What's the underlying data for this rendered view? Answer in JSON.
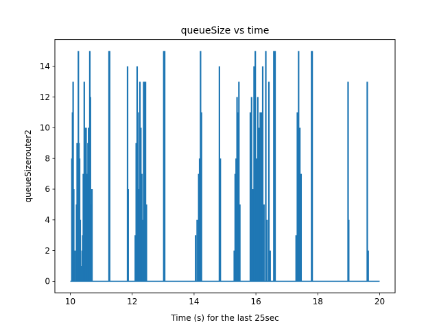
{
  "chart_data": {
    "type": "line",
    "title": "queueSize vs time",
    "xlabel": "Time (s) for the last 25sec",
    "ylabel": "queueSizerouter2",
    "xlim": [
      9.5,
      20.5
    ],
    "ylim": [
      -0.75,
      15.75
    ],
    "xticks": [
      10,
      12,
      14,
      16,
      18,
      20
    ],
    "yticks": [
      0,
      2,
      4,
      6,
      8,
      10,
      12,
      14
    ],
    "grid": false,
    "legend": "none",
    "line_color": "#1f77b4",
    "baseline": {
      "x_start": 10.0,
      "x_end": 20.0,
      "y": 0
    },
    "series": [
      {
        "spikes": [
          [
            10.05,
            8
          ],
          [
            10.07,
            11
          ],
          [
            10.09,
            13
          ],
          [
            10.11,
            6
          ],
          [
            10.13,
            2
          ],
          [
            10.16,
            0
          ],
          [
            10.18,
            2
          ],
          [
            10.2,
            5
          ],
          [
            10.22,
            9
          ],
          [
            10.24,
            7
          ],
          [
            10.26,
            15
          ],
          [
            10.28,
            9
          ],
          [
            10.3,
            8
          ],
          [
            10.32,
            4
          ],
          [
            10.35,
            1
          ],
          [
            10.38,
            2
          ],
          [
            10.4,
            3
          ],
          [
            10.42,
            7
          ],
          [
            10.45,
            13
          ],
          [
            10.47,
            10
          ],
          [
            10.49,
            9
          ],
          [
            10.51,
            10
          ],
          [
            10.53,
            5
          ],
          [
            10.55,
            7
          ],
          [
            10.57,
            9
          ],
          [
            10.59,
            10
          ],
          [
            10.61,
            2
          ],
          [
            10.63,
            15
          ],
          [
            10.65,
            12
          ],
          [
            10.67,
            5
          ],
          [
            10.7,
            6
          ],
          [
            11.25,
            15
          ],
          [
            11.27,
            15
          ],
          [
            11.85,
            14
          ],
          [
            11.87,
            6
          ],
          [
            12.1,
            3
          ],
          [
            12.13,
            9
          ],
          [
            12.16,
            14
          ],
          [
            12.19,
            11
          ],
          [
            12.22,
            6
          ],
          [
            12.25,
            13
          ],
          [
            12.28,
            10
          ],
          [
            12.31,
            7
          ],
          [
            12.34,
            4
          ],
          [
            12.37,
            13
          ],
          [
            12.4,
            13
          ],
          [
            12.43,
            13
          ],
          [
            12.46,
            5
          ],
          [
            13.02,
            15
          ],
          [
            13.05,
            15
          ],
          [
            14.05,
            3
          ],
          [
            14.1,
            4
          ],
          [
            14.15,
            7
          ],
          [
            14.18,
            8
          ],
          [
            14.21,
            15
          ],
          [
            14.24,
            11
          ],
          [
            14.82,
            14
          ],
          [
            14.85,
            8
          ],
          [
            15.3,
            2
          ],
          [
            15.33,
            7
          ],
          [
            15.36,
            8
          ],
          [
            15.39,
            12
          ],
          [
            15.42,
            11
          ],
          [
            15.45,
            13
          ],
          [
            15.48,
            5
          ],
          [
            15.82,
            11
          ],
          [
            15.86,
            12
          ],
          [
            15.9,
            6
          ],
          [
            15.94,
            14
          ],
          [
            15.98,
            15
          ],
          [
            16.02,
            8
          ],
          [
            16.06,
            12
          ],
          [
            16.1,
            10
          ],
          [
            16.14,
            11
          ],
          [
            16.18,
            11
          ],
          [
            16.22,
            14
          ],
          [
            16.26,
            5
          ],
          [
            16.32,
            15
          ],
          [
            16.36,
            4
          ],
          [
            16.42,
            13
          ],
          [
            16.46,
            2
          ],
          [
            16.58,
            15
          ],
          [
            16.62,
            15
          ],
          [
            17.3,
            3
          ],
          [
            17.34,
            11
          ],
          [
            17.38,
            15
          ],
          [
            17.42,
            10
          ],
          [
            17.46,
            7
          ],
          [
            17.8,
            15
          ],
          [
            17.82,
            15
          ],
          [
            18.98,
            13
          ],
          [
            19.0,
            4
          ],
          [
            19.6,
            13
          ],
          [
            19.63,
            2
          ]
        ]
      }
    ]
  }
}
